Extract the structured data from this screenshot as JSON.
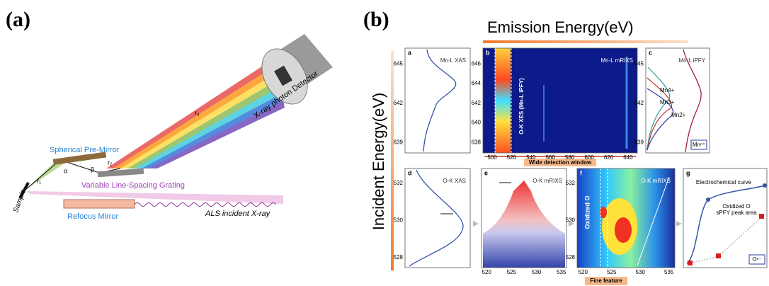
{
  "panel_a": {
    "label": "(a)",
    "detector": "X-ray photon Detector",
    "pre_mirror": "Spherical Pre-Mirror",
    "grating": "Variable Line-Spacing Grating",
    "refocus_mirror": "Refocus Mirror",
    "incident": "ALS incident X-ray",
    "sample": "Sample",
    "symbols": {
      "alpha": "α",
      "beta": "β",
      "r1": "r₁",
      "r2": "r₂",
      "r3": "r₃"
    }
  },
  "panel_b": {
    "label": "(b)",
    "x_axis": "Emission Energy(eV)",
    "y_axis": "Incident Energy(eV)",
    "panels": [
      {
        "letter": "a",
        "title": "Mn-L XAS",
        "yticks": [
          "645",
          "642",
          "639"
        ]
      },
      {
        "letter": "b",
        "title": "Mn-L mRIXS",
        "yticks": [
          "646",
          "644",
          "642",
          "640",
          "638"
        ],
        "xticks": [
          "500",
          "520",
          "540",
          "560",
          "580",
          "600",
          "620",
          "640"
        ],
        "annotation": "O-K XES (Mn-L iPFY)",
        "window": "Wide detection window"
      },
      {
        "letter": "c",
        "title": "Mn-L iPFY",
        "yticks": [
          "645",
          "642",
          "639"
        ],
        "states": [
          "Mn4+",
          "Mn3+",
          "Mn2+"
        ],
        "legend": "Mnⁿ⁺"
      },
      {
        "letter": "d",
        "title": "O-K XAS",
        "yticks": [
          "532",
          "530",
          "528"
        ]
      },
      {
        "letter": "e",
        "title": "O-K mRIXS",
        "xticks": [
          "520",
          "525",
          "530",
          "535"
        ]
      },
      {
        "letter": "f",
        "title": "O-K mRIXS",
        "yticks": [
          "532",
          "530",
          "528"
        ],
        "xticks": [
          "520",
          "525",
          "530",
          "535"
        ],
        "annotation": "Oxidized O",
        "window": "Fine feature"
      },
      {
        "letter": "g",
        "curve": "Electrochemical curve",
        "area": [
          "Oxidized O",
          "sPFY peak area"
        ],
        "legend": "Oⁿ⁻"
      }
    ]
  }
}
